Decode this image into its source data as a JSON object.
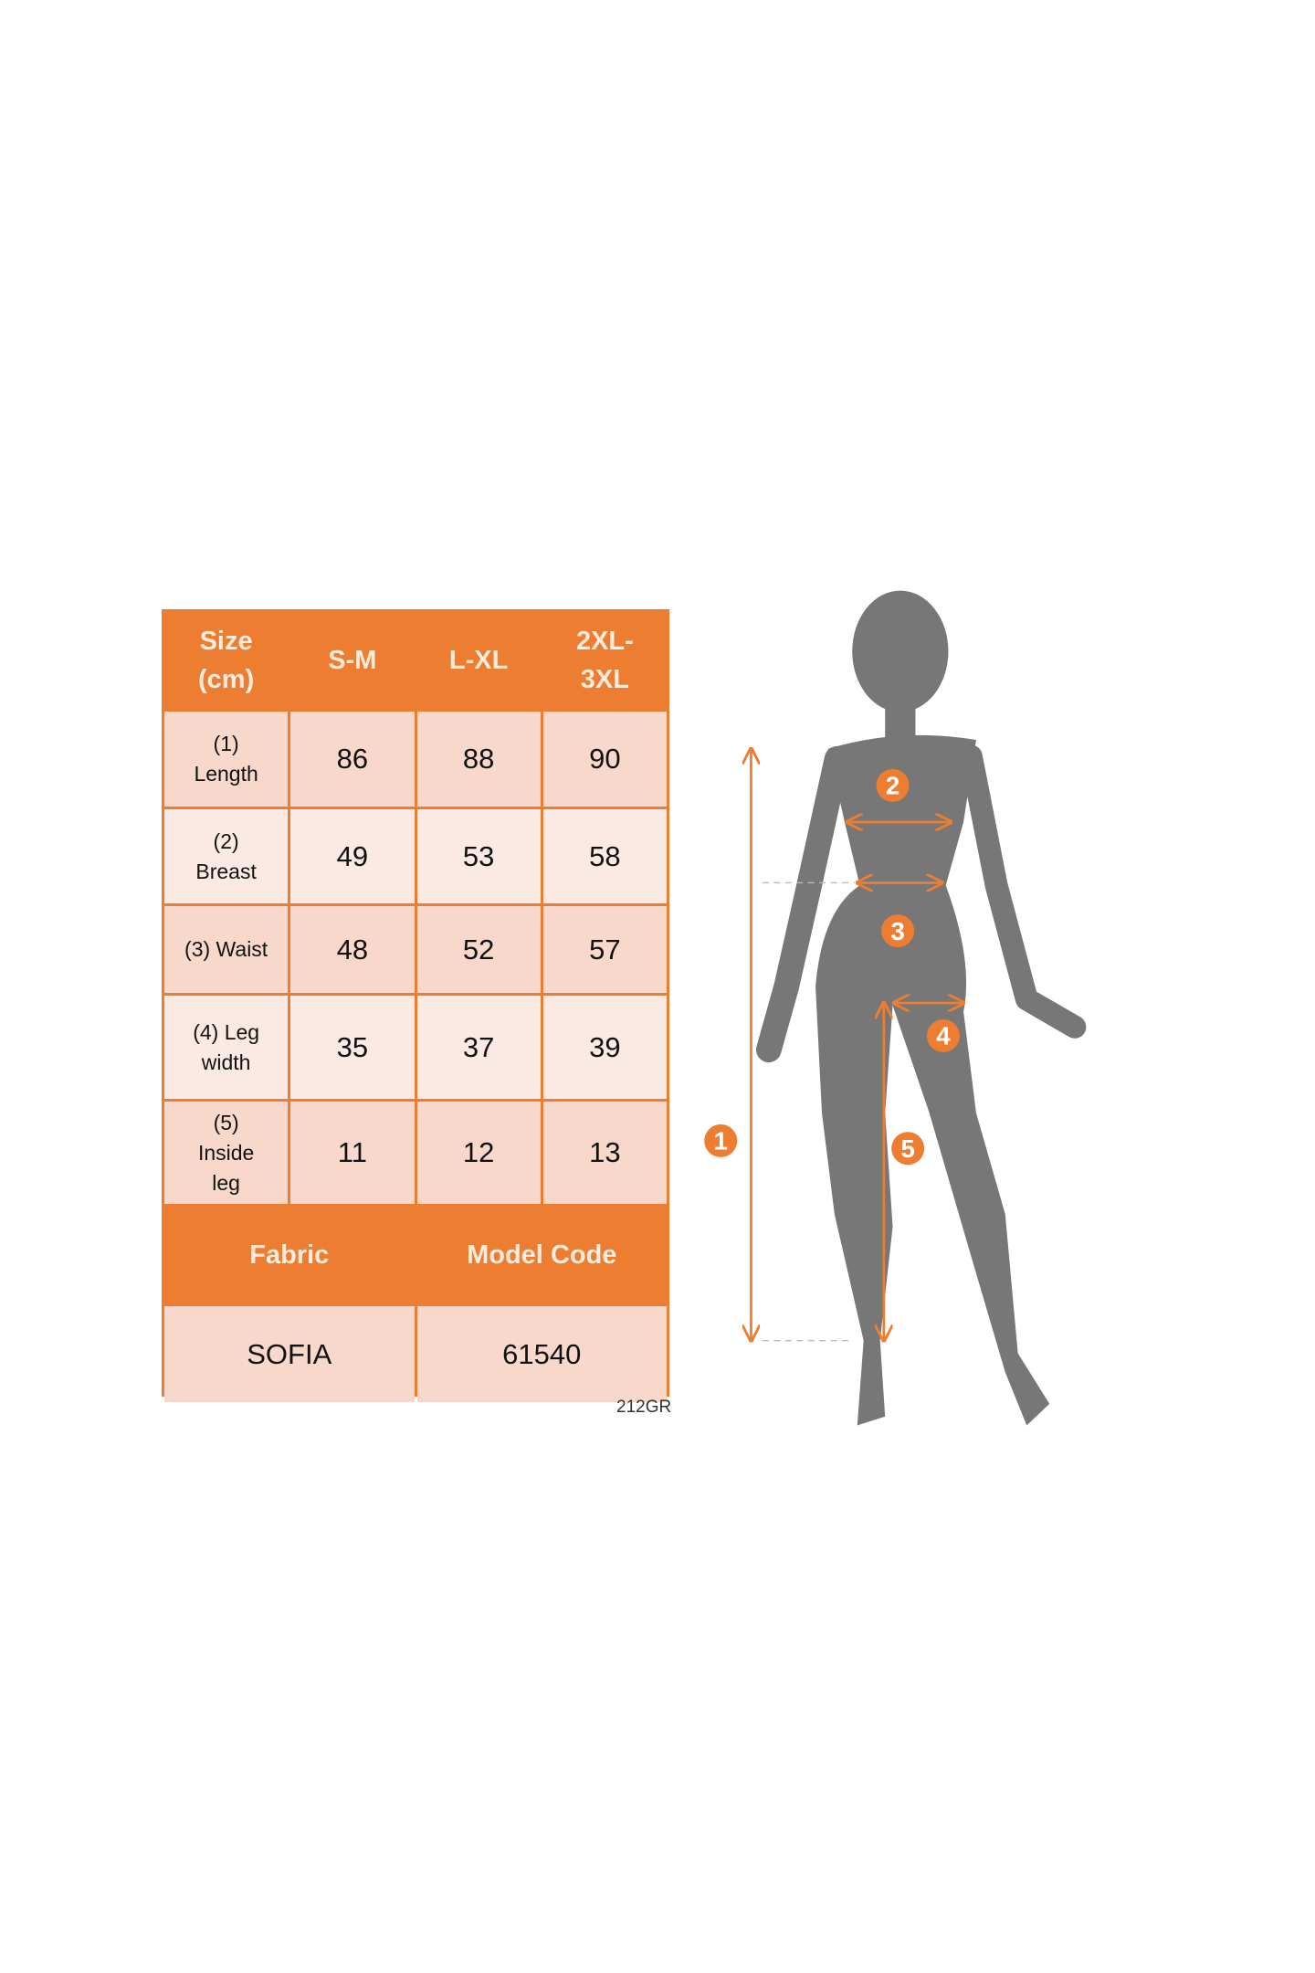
{
  "size_table": {
    "header": [
      "Size\n(cm)",
      "S-M",
      "L-XL",
      "2XL-\n3XL"
    ],
    "rows": [
      {
        "label": "(1)\nLength",
        "values": [
          "86",
          "88",
          "90"
        ]
      },
      {
        "label": "(2)\nBreast",
        "values": [
          "49",
          "53",
          "58"
        ]
      },
      {
        "label": "(3) Waist",
        "values": [
          "48",
          "52",
          "57"
        ]
      },
      {
        "label": "(4) Leg\nwidth",
        "values": [
          "35",
          "37",
          "39"
        ]
      },
      {
        "label": "(5)\nInside\nleg",
        "values": [
          "11",
          "12",
          "13"
        ]
      }
    ],
    "footer_headers": [
      "Fabric",
      "Model Code"
    ],
    "footer_values": [
      "SOFIA",
      "61540"
    ],
    "code": "212GR"
  },
  "figure": {
    "badges": [
      "1",
      "2",
      "3",
      "4",
      "5"
    ]
  },
  "colors": {
    "accent": "#ED7D31",
    "silhouette": "#777777",
    "cell_dark": "#F8D8CB",
    "cell_light": "#FBEAE4"
  }
}
